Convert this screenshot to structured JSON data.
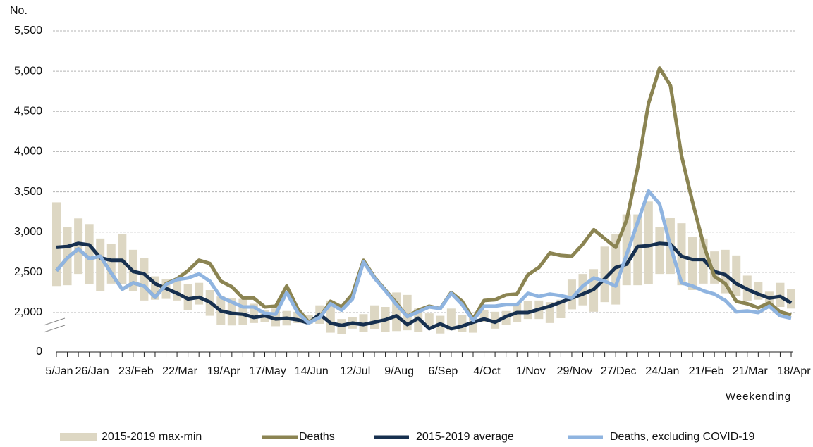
{
  "chart_data": {
    "type": "line",
    "y_unit": "No.",
    "x_label": "Weekending",
    "categories": [
      "5/Jan",
      null,
      null,
      "26/Jan",
      null,
      null,
      null,
      "23/Feb",
      null,
      null,
      null,
      "22/Mar",
      null,
      null,
      null,
      "19/Apr",
      null,
      null,
      null,
      "17/May",
      null,
      null,
      null,
      "14/Jun",
      null,
      null,
      null,
      "12/Jul",
      null,
      null,
      null,
      "9/Aug",
      null,
      null,
      null,
      "6/Sep",
      null,
      null,
      null,
      "4/Oct",
      null,
      null,
      null,
      "1/Nov",
      null,
      null,
      null,
      "29/Nov",
      null,
      null,
      null,
      "27/Dec",
      null,
      null,
      null,
      "24/Jan",
      null,
      null,
      null,
      "21/Feb",
      null,
      null,
      null,
      "21/Mar",
      null,
      null,
      null,
      "18/Apr"
    ],
    "ylim": [
      0,
      5500
    ],
    "axis_break": true,
    "yticks": [
      0,
      {
        "value": 2000,
        "label": "2,000"
      },
      {
        "value": 2500,
        "label": "2,500"
      },
      {
        "value": 3000,
        "label": "3,000"
      },
      {
        "value": 3500,
        "label": "3,500"
      },
      {
        "value": 4000,
        "label": "4,000"
      },
      {
        "value": 4500,
        "label": "4,500"
      },
      {
        "value": 5000,
        "label": "5,000"
      },
      {
        "value": 5500,
        "label": "5,500"
      }
    ],
    "grid": true,
    "range": {
      "name": "2015-2019 max-min",
      "color": "#ddd7c3",
      "high": [
        3370,
        3060,
        3170,
        3100,
        2920,
        2850,
        2980,
        2780,
        2680,
        2450,
        2420,
        2420,
        2350,
        2370,
        2280,
        2200,
        2180,
        2170,
        2110,
        2030,
        2050,
        2020,
        2010,
        1970,
        2090,
        2150,
        1920,
        1940,
        1980,
        2090,
        2070,
        2250,
        2220,
        2050,
        1990,
        1960,
        2050,
        1970,
        1950,
        2030,
        2010,
        2020,
        2120,
        2140,
        2150,
        2130,
        2160,
        2410,
        2480,
        2540,
        2820,
        2980,
        3220,
        3220,
        3380,
        3060,
        3180,
        3110,
        2940,
        2920,
        2760,
        2780,
        2710,
        2460,
        2380,
        2260,
        2370,
        2290
      ],
      "low": [
        2330,
        2340,
        2480,
        2350,
        2270,
        2360,
        2350,
        2270,
        2150,
        2160,
        2170,
        2150,
        2030,
        2100,
        1960,
        1850,
        1840,
        1850,
        1870,
        1880,
        1830,
        1840,
        1870,
        1860,
        1860,
        1750,
        1730,
        1800,
        1760,
        1790,
        1760,
        1770,
        1780,
        1760,
        1820,
        1740,
        1780,
        1760,
        1750,
        1880,
        1800,
        1850,
        1880,
        1920,
        1920,
        1870,
        1930,
        2040,
        2090,
        2010,
        2130,
        2100,
        2340,
        2340,
        2350,
        2480,
        2480,
        2340,
        2280,
        2360,
        2360,
        2240,
        2210,
        2140,
        2160,
        2080,
        2070,
        2050
      ]
    },
    "series": [
      {
        "name": "Deaths",
        "color": "#8b8452",
        "values": [
          2520,
          2680,
          2790,
          2670,
          2700,
          2490,
          2290,
          2370,
          2330,
          2190,
          2360,
          2420,
          2520,
          2650,
          2610,
          2390,
          2320,
          2180,
          2180,
          2070,
          2080,
          2330,
          2050,
          1880,
          1940,
          2140,
          2070,
          2230,
          2650,
          2440,
          2280,
          2120,
          1950,
          2030,
          2080,
          2050,
          2250,
          2140,
          1920,
          2150,
          2160,
          2220,
          2230,
          2470,
          2560,
          2740,
          2710,
          2700,
          2850,
          3030,
          2920,
          2810,
          3150,
          3800,
          4600,
          5040,
          4820,
          3950,
          3380,
          2850,
          2450,
          2360,
          2140,
          2110,
          2060,
          2120,
          2010,
          1970
        ]
      },
      {
        "name": "2015-2019 average",
        "color": "#17304f",
        "values": [
          2810,
          2820,
          2860,
          2840,
          2680,
          2650,
          2650,
          2510,
          2480,
          2360,
          2300,
          2240,
          2170,
          2190,
          2130,
          2020,
          1990,
          1980,
          1940,
          1960,
          1920,
          1930,
          1910,
          1870,
          1980,
          1870,
          1840,
          1870,
          1850,
          1880,
          1910,
          1960,
          1850,
          1930,
          1800,
          1860,
          1800,
          1830,
          1880,
          1920,
          1880,
          1950,
          2000,
          2000,
          2040,
          2080,
          2130,
          2180,
          2230,
          2290,
          2420,
          2560,
          2600,
          2820,
          2830,
          2860,
          2850,
          2700,
          2660,
          2660,
          2510,
          2470,
          2360,
          2290,
          2230,
          2180,
          2200,
          2120
        ]
      },
      {
        "name": "Deaths, excluding COVID-19",
        "color": "#8fb4e0",
        "values": [
          2520,
          2680,
          2790,
          2670,
          2700,
          2490,
          2290,
          2370,
          2330,
          2190,
          2350,
          2410,
          2430,
          2480,
          2390,
          2190,
          2130,
          2070,
          2070,
          1990,
          1980,
          2250,
          2000,
          1870,
          1940,
          2110,
          2030,
          2170,
          2630,
          2430,
          2270,
          2100,
          1950,
          2010,
          2070,
          2050,
          2240,
          2100,
          1900,
          2080,
          2080,
          2100,
          2100,
          2240,
          2200,
          2230,
          2210,
          2180,
          2330,
          2430,
          2390,
          2330,
          2720,
          3120,
          3510,
          3350,
          2820,
          2370,
          2330,
          2270,
          2230,
          2150,
          2010,
          2020,
          2000,
          2080,
          1960,
          1930
        ]
      }
    ]
  }
}
